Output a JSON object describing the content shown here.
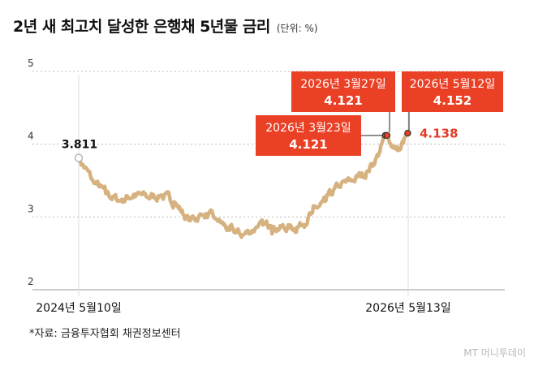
{
  "title": "2년 새 최고치 달성한 은행채 5년물 금리",
  "unit": "(단위: %)",
  "source": "*자료: 금융투자협회 채권정보센터",
  "logo": "MT 머니투데이",
  "colors": {
    "line": "#d5b27f",
    "callout": "#ea4026",
    "marker": "#ea4026",
    "grid": "#bdbdbd",
    "last_value": "#e23a26"
  },
  "chart_data": {
    "type": "line",
    "title": "2년 새 최고치 달성한 은행채 5년물 금리",
    "xlabel": "",
    "ylabel": "",
    "ylim": [
      2,
      5
    ],
    "y_ticks": [
      "5",
      "4",
      "3",
      "2"
    ],
    "x_ticks": [
      "2024년 5월10일",
      "2026년 5월13일"
    ],
    "grid": true,
    "x": [
      "2024-05-10",
      "2024-06-10",
      "2024-07-10",
      "2024-08-10",
      "2024-09-10",
      "2024-10-10",
      "2024-11-10",
      "2024-12-10",
      "2025-01-10",
      "2025-02-10",
      "2025-03-10",
      "2025-04-10",
      "2025-05-10",
      "2025-06-10",
      "2025-07-10",
      "2025-08-10",
      "2025-09-10",
      "2025-10-10",
      "2025-11-10",
      "2025-12-10",
      "2026-01-10",
      "2026-02-10",
      "2026-03-10",
      "2026-03-23",
      "2026-03-27",
      "2026-04-10",
      "2026-04-25",
      "2026-05-12",
      "2026-05-13"
    ],
    "series": [
      {
        "values": [
          3.811,
          3.5,
          3.32,
          3.22,
          3.31,
          3.27,
          3.3,
          3.2,
          2.95,
          3.03,
          2.98,
          2.82,
          2.75,
          2.86,
          2.88,
          2.85,
          2.86,
          3.05,
          3.22,
          3.42,
          3.5,
          3.62,
          3.88,
          4.121,
          4.121,
          3.95,
          3.92,
          4.152,
          4.138
        ]
      }
    ],
    "annotations": [
      {
        "date": "2026년 3월23일",
        "value": "4.121"
      },
      {
        "date": "2026년 3월27일",
        "value": "4.121"
      },
      {
        "date": "2026년 5월12일",
        "value": "4.152"
      }
    ],
    "start_label": "3.811",
    "last_label": "4.138"
  }
}
